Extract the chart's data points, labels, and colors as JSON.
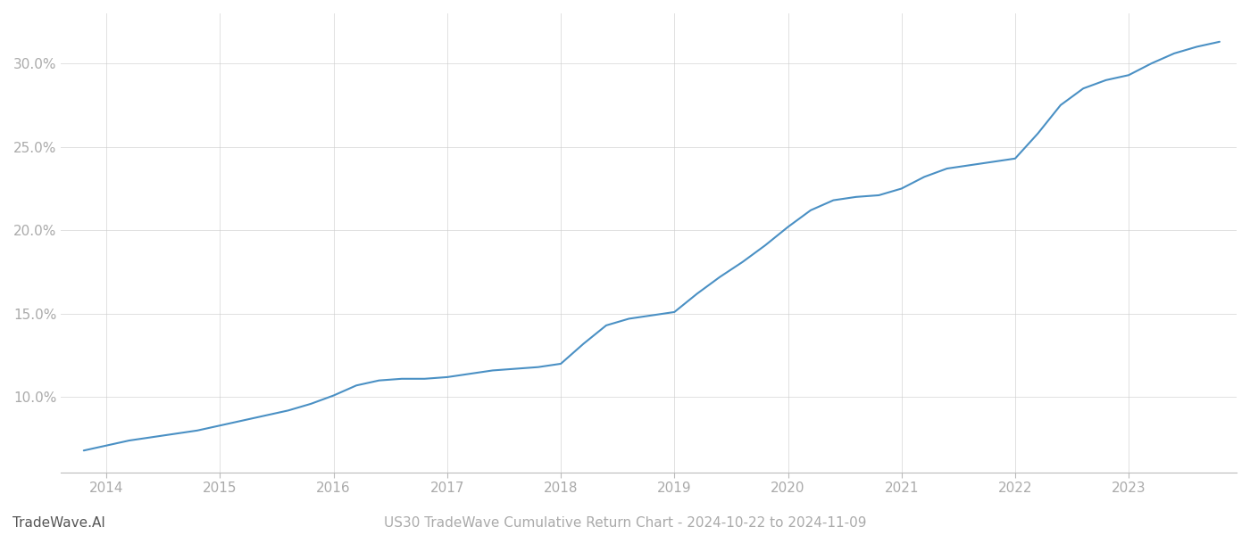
{
  "title_bottom_left": "TradeWave.AI",
  "title_bottom_right": "US30 TradeWave Cumulative Return Chart - 2024-10-22 to 2024-11-09",
  "line_color": "#4a90c4",
  "background_color": "#ffffff",
  "grid_color": "#cccccc",
  "x_values": [
    2013.8,
    2014.0,
    2014.2,
    2014.4,
    2014.6,
    2014.8,
    2015.0,
    2015.2,
    2015.4,
    2015.6,
    2015.8,
    2016.0,
    2016.2,
    2016.4,
    2016.6,
    2016.8,
    2017.0,
    2017.2,
    2017.4,
    2017.6,
    2017.8,
    2018.0,
    2018.2,
    2018.4,
    2018.6,
    2018.8,
    2019.0,
    2019.2,
    2019.4,
    2019.6,
    2019.8,
    2020.0,
    2020.2,
    2020.4,
    2020.6,
    2020.8,
    2021.0,
    2021.2,
    2021.4,
    2021.6,
    2021.8,
    2022.0,
    2022.2,
    2022.4,
    2022.6,
    2022.8,
    2023.0,
    2023.2,
    2023.4,
    2023.6,
    2023.8
  ],
  "y_values": [
    6.8,
    7.1,
    7.4,
    7.6,
    7.8,
    8.0,
    8.3,
    8.6,
    8.9,
    9.2,
    9.6,
    10.1,
    10.7,
    11.0,
    11.1,
    11.1,
    11.2,
    11.4,
    11.6,
    11.7,
    11.8,
    12.0,
    13.2,
    14.3,
    14.7,
    14.9,
    15.1,
    16.2,
    17.2,
    18.1,
    19.1,
    20.2,
    21.2,
    21.8,
    22.0,
    22.1,
    22.5,
    23.2,
    23.7,
    23.9,
    24.1,
    24.3,
    25.8,
    27.5,
    28.5,
    29.0,
    29.3,
    30.0,
    30.6,
    31.0,
    31.3
  ],
  "xlim": [
    2013.6,
    2023.95
  ],
  "ylim": [
    5.5,
    33.0
  ],
  "yticks": [
    10.0,
    15.0,
    20.0,
    25.0,
    30.0
  ],
  "xticks": [
    2014,
    2015,
    2016,
    2017,
    2018,
    2019,
    2020,
    2021,
    2022,
    2023
  ],
  "line_width": 1.5,
  "figsize": [
    14.0,
    6.0
  ],
  "dpi": 100
}
